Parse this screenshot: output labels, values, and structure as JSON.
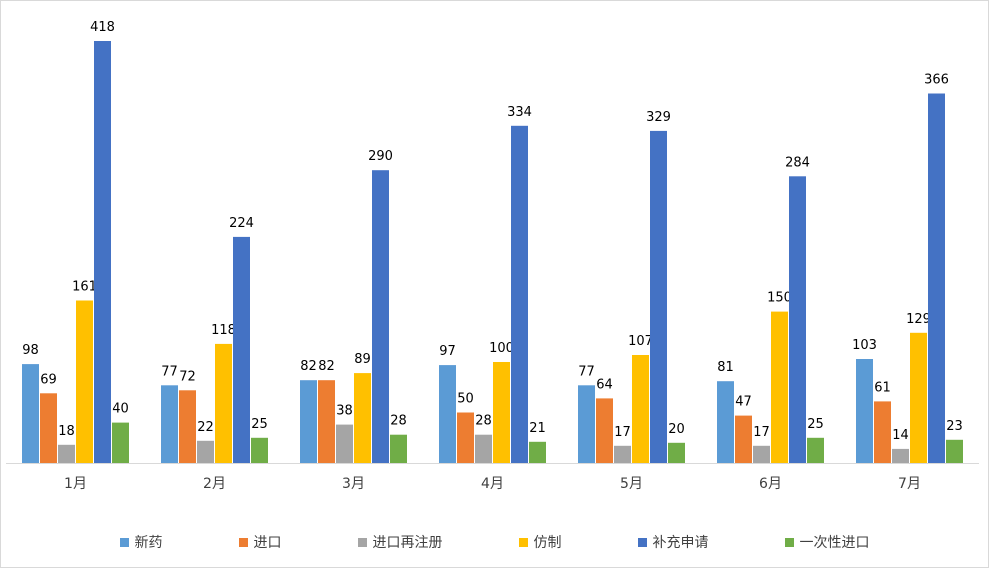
{
  "chart_data": {
    "type": "bar",
    "categories": [
      "1月",
      "2月",
      "3月",
      "4月",
      "5月",
      "6月",
      "7月"
    ],
    "series": [
      {
        "name": "新药",
        "color": "#5b9bd5",
        "values": [
          98,
          77,
          82,
          97,
          77,
          81,
          103
        ]
      },
      {
        "name": "进口",
        "color": "#ed7d31",
        "values": [
          69,
          72,
          82,
          50,
          64,
          47,
          61
        ]
      },
      {
        "name": "进口再注册",
        "color": "#a5a5a5",
        "values": [
          18,
          22,
          38,
          28,
          17,
          17,
          14
        ]
      },
      {
        "name": "仿制",
        "color": "#ffc000",
        "values": [
          161,
          118,
          89,
          100,
          107,
          150,
          129
        ]
      },
      {
        "name": "补充申请",
        "color": "#4472c4",
        "values": [
          418,
          224,
          290,
          334,
          329,
          284,
          366
        ]
      },
      {
        "name": "一次性进口",
        "color": "#70ad47",
        "values": [
          40,
          25,
          28,
          21,
          20,
          25,
          23
        ]
      }
    ],
    "ylim": [
      0,
      418
    ],
    "grid": false,
    "legend": "bottom",
    "data_labels": true
  }
}
